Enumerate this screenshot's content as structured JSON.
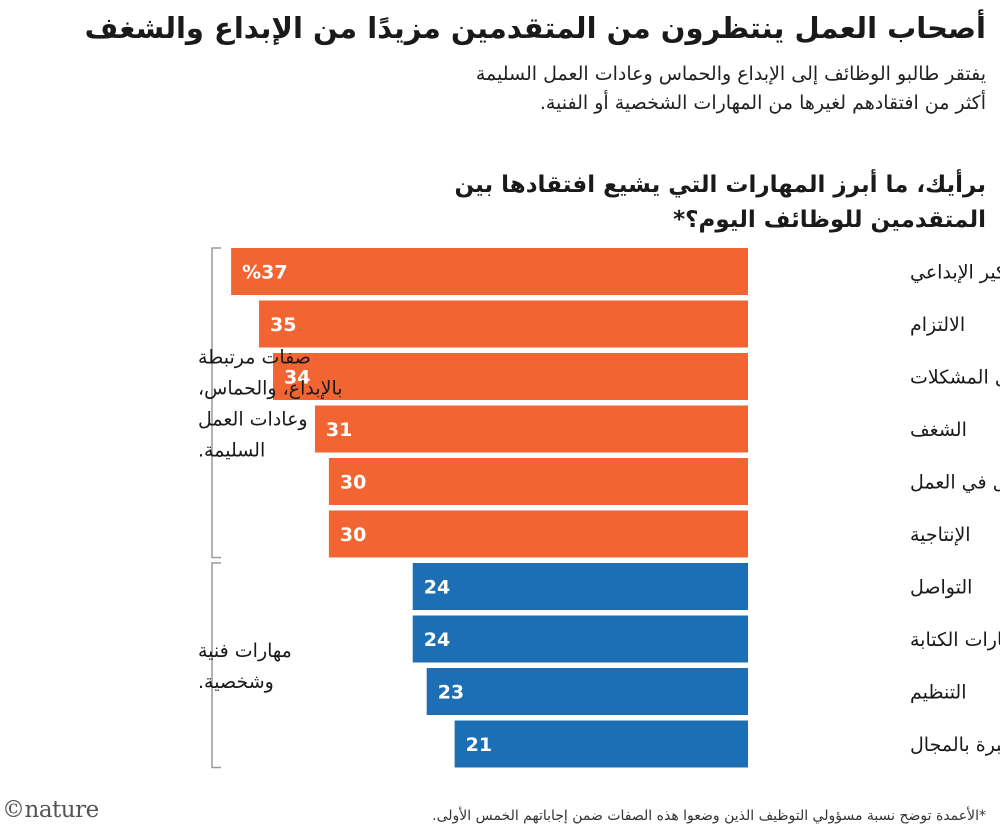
{
  "header": {
    "title": "أصحاب العمل ينتظرون من المتقدمين مزيدًا من الإبداع والشغف",
    "subtitle": "يفتقر طالبو الوظائف إلى الإبداع والحماس وعادات العمل السليمة أكثر من افتقادهم لغيرها من المهارات الشخصية أو الفنية."
  },
  "chart_data": {
    "type": "bar",
    "orientation": "horizontal",
    "title": "برأيك، ما أبرز المهارات التي يشيع افتقادها بين المتقدمين للوظائف اليوم؟*",
    "unit_suffix": "%",
    "categories": [
      "التفكير الإبداعي",
      "الالتزام",
      "حل المشكلات",
      "الشغف",
      "الاستقلال في العمل",
      "الإنتاجية",
      "التواصل",
      "مهارات الكتابة",
      "التنظيم",
      "الخبرة بالمجال"
    ],
    "values": [
      37,
      35,
      34,
      31,
      30,
      30,
      24,
      24,
      23,
      21
    ],
    "xlim": [
      0,
      37
    ],
    "groups": [
      {
        "label": "صفات مرتبطة بالإبداع، والحماس، وعادات العمل السليمة.",
        "lines": [
          "صفات مرتبطة",
          "بالإبداع، والحماس،",
          "وعادات العمل",
          "السليمة."
        ],
        "start": 0,
        "end": 5,
        "color": "#f26532"
      },
      {
        "label": "مهارات فنية وشخصية.",
        "lines": [
          "مهارات فنية",
          "وشخصية."
        ],
        "start": 6,
        "end": 9,
        "color": "#1c6fb5"
      }
    ]
  },
  "footnote": "*الأعمدة توضح نسبة مسؤولي التوظيف الذين وضعوا هذه الصفات ضمن إجاباتهم الخمس الأولى.",
  "logo": "©nature"
}
